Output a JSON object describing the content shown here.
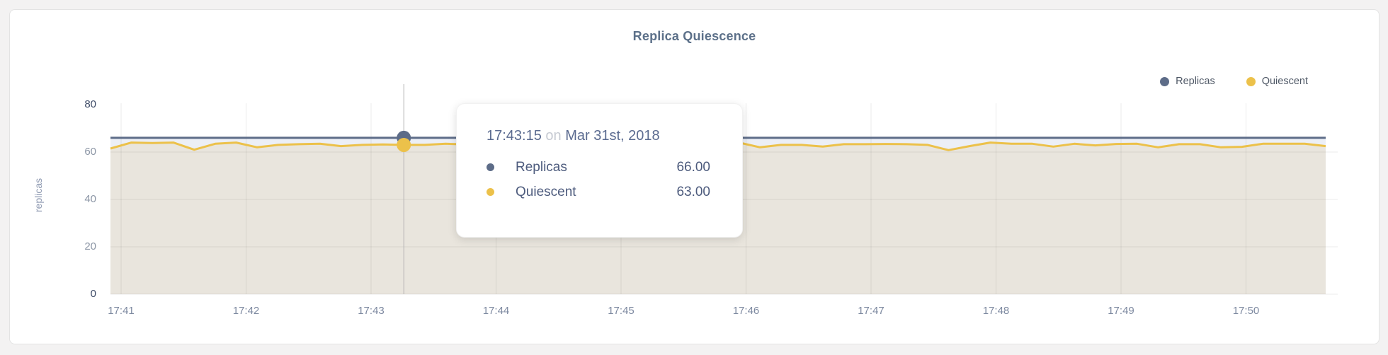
{
  "title": "Replica Quiescence",
  "legend": {
    "items": [
      {
        "label": "Replicas",
        "color": "#5d6c88"
      },
      {
        "label": "Quiescent",
        "color": "#ecc14a"
      }
    ]
  },
  "y_axis": {
    "label": "replicas"
  },
  "tooltip": {
    "time": "17:43:15",
    "connector": "on",
    "date": "Mar 31st, 2018",
    "rows": [
      {
        "label": "Replicas",
        "value": "66.00",
        "color": "#5d6c88"
      },
      {
        "label": "Quiescent",
        "value": "63.00",
        "color": "#ecc14a"
      }
    ]
  },
  "chart_data": {
    "type": "area",
    "title": "Replica Quiescence",
    "xlabel": "",
    "ylabel": "replicas",
    "ylim": [
      0,
      80
    ],
    "y_ticks": [
      0,
      20,
      40,
      60,
      80
    ],
    "x_tick_labels": [
      "17:41",
      "17:42",
      "17:43",
      "17:44",
      "17:45",
      "17:46",
      "17:47",
      "17:48",
      "17:49",
      "17:50"
    ],
    "x_start_time": "17:40:55",
    "x_interval_seconds": 10,
    "grid": true,
    "legend_position": "top-right",
    "hover": {
      "index": 14,
      "time": "17:43:15",
      "date": "Mar 31st, 2018",
      "replicas": 66,
      "quiescent": 63
    },
    "series": [
      {
        "name": "Replicas",
        "color": "#5d6c88",
        "fill": "rgba(208,216,232,0.4)",
        "values": [
          66,
          66,
          66,
          66,
          66,
          66,
          66,
          66,
          66,
          66,
          66,
          66,
          66,
          66,
          66,
          66,
          66,
          66,
          66,
          66,
          66,
          66,
          66,
          66,
          66,
          66,
          66,
          66,
          66,
          66,
          66,
          66,
          66,
          66,
          66,
          66,
          66,
          66,
          66,
          66,
          66,
          66,
          66,
          66,
          66,
          66,
          66,
          66,
          66,
          66,
          66,
          66,
          66,
          66,
          66,
          66,
          66,
          66,
          66
        ]
      },
      {
        "name": "Quiescent",
        "color": "#ecc14a",
        "fill": "rgba(229,220,196,0.5)",
        "values": [
          61.5,
          64,
          63.8,
          64,
          61,
          63.5,
          64,
          62,
          63,
          63.3,
          63.5,
          62.5,
          63,
          63.2,
          63,
          63,
          63.5,
          63.2,
          63.5,
          63,
          63.4,
          63,
          63.5,
          63.2,
          63.4,
          63,
          63.3,
          63.5,
          63.2,
          63.4,
          64,
          62,
          63,
          63,
          62.3,
          63.3,
          63.3,
          63.4,
          63.3,
          63,
          60.8,
          62.5,
          64,
          63.5,
          63.5,
          62.3,
          63.5,
          62.8,
          63.4,
          63.5,
          62,
          63.3,
          63.3,
          62,
          62.2,
          63.5,
          63.5,
          63.5,
          62.5
        ]
      }
    ]
  }
}
